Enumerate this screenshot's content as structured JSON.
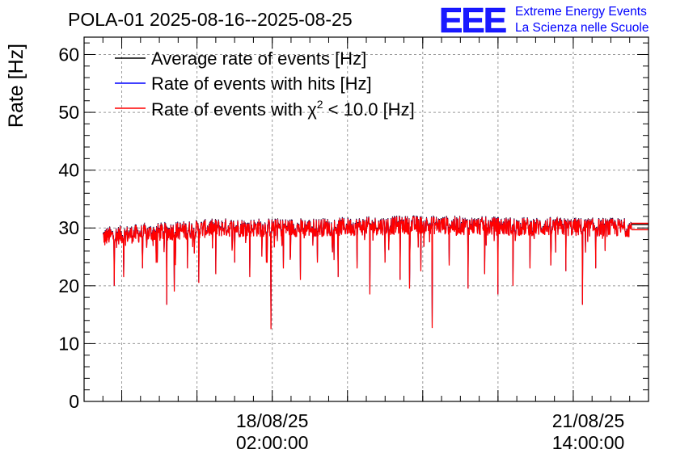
{
  "chart_data": {
    "type": "line",
    "title": "POLA-01 2025-08-16--2025-08-25",
    "ylabel": "Rate [Hz]",
    "xlabel": "",
    "ylim": [
      0,
      63
    ],
    "yticks": [
      0,
      10,
      20,
      30,
      40,
      50,
      60
    ],
    "grid": true,
    "legend_position": "top-left",
    "x_tick_labels": [
      {
        "date": "18/08/25",
        "time": "02:00:00",
        "x": "2025-08-18T02:00:00"
      },
      {
        "date": "21/08/25",
        "time": "14:00:00",
        "x": "2025-08-21T14:00:00"
      }
    ],
    "xlim": [
      "2025-08-16T00:00:00",
      "2025-08-22T06:00:00"
    ],
    "series": [
      {
        "name": "Average rate of events [Hz]",
        "color": "#000000",
        "legend_text": "Average rate of events [Hz]"
      },
      {
        "name": "Rate of events with hits [Hz]",
        "color": "#0000ff",
        "legend_text": "Rate of events with hits [Hz]"
      },
      {
        "name": "Rate of events with χ2 < 10.0 [Hz]",
        "color": "#ff0000",
        "legend_pre": "Rate of events with χ",
        "legend_sup": "2",
        "legend_post": " < 10.0 [Hz]"
      }
    ],
    "data_start": "2025-08-16T05:00:00",
    "data_end": "2025-08-22T01:30:00",
    "baseline": [
      {
        "x": "2025-08-16T05:00:00",
        "y": 28.5
      },
      {
        "x": "2025-08-17T12:00:00",
        "y": 30.0
      },
      {
        "x": "2025-08-18T12:00:00",
        "y": 30.0
      },
      {
        "x": "2025-08-19T18:00:00",
        "y": 30.5
      },
      {
        "x": "2025-08-20T18:00:00",
        "y": 30.2
      },
      {
        "x": "2025-08-22T01:30:00",
        "y": 30.0
      }
    ],
    "band_halfwidth": 1.6,
    "dips": [
      {
        "x": "2025-08-16T05:30:00",
        "y": 27.0
      },
      {
        "x": "2025-08-16T08:00:00",
        "y": 20.0
      },
      {
        "x": "2025-08-16T10:30:00",
        "y": 21.5
      },
      {
        "x": "2025-08-16T15:30:00",
        "y": 23.0
      },
      {
        "x": "2025-08-16T19:30:00",
        "y": 24.0
      },
      {
        "x": "2025-08-16T22:00:00",
        "y": 16.7
      },
      {
        "x": "2025-08-17T00:00:00",
        "y": 19.0
      },
      {
        "x": "2025-08-17T03:30:00",
        "y": 23.0
      },
      {
        "x": "2025-08-17T06:30:00",
        "y": 20.5
      },
      {
        "x": "2025-08-17T11:00:00",
        "y": 22.0
      },
      {
        "x": "2025-08-17T16:00:00",
        "y": 24.0
      },
      {
        "x": "2025-08-17T20:00:00",
        "y": 21.5
      },
      {
        "x": "2025-08-18T00:30:00",
        "y": 24.0
      },
      {
        "x": "2025-08-18T01:40:00",
        "y": 12.5
      },
      {
        "x": "2025-08-18T05:00:00",
        "y": 23.0
      },
      {
        "x": "2025-08-18T09:30:00",
        "y": 21.0
      },
      {
        "x": "2025-08-18T14:00:00",
        "y": 24.0
      },
      {
        "x": "2025-08-18T19:30:00",
        "y": 21.5
      },
      {
        "x": "2025-08-19T00:30:00",
        "y": 23.0
      },
      {
        "x": "2025-08-19T04:00:00",
        "y": 18.5
      },
      {
        "x": "2025-08-19T08:00:00",
        "y": 24.0
      },
      {
        "x": "2025-08-19T12:00:00",
        "y": 21.0
      },
      {
        "x": "2025-08-19T14:30:00",
        "y": 19.5
      },
      {
        "x": "2025-08-19T17:30:00",
        "y": 22.5
      },
      {
        "x": "2025-08-19T20:30:00",
        "y": 12.7
      },
      {
        "x": "2025-08-20T01:00:00",
        "y": 23.5
      },
      {
        "x": "2025-08-20T06:00:00",
        "y": 19.5
      },
      {
        "x": "2025-08-20T10:30:00",
        "y": 22.0
      },
      {
        "x": "2025-08-20T14:00:00",
        "y": 18.5
      },
      {
        "x": "2025-08-20T18:00:00",
        "y": 20.0
      },
      {
        "x": "2025-08-20T22:30:00",
        "y": 23.0
      },
      {
        "x": "2025-08-21T04:00:00",
        "y": 23.5
      },
      {
        "x": "2025-08-21T08:00:00",
        "y": 22.5
      },
      {
        "x": "2025-08-21T12:30:00",
        "y": 16.7
      },
      {
        "x": "2025-08-21T16:00:00",
        "y": 23.0
      },
      {
        "x": "2025-08-21T18:30:00",
        "y": 26.0
      }
    ],
    "tail_level_black": 30.6,
    "tail_level_red": 30.2
  },
  "logo": {
    "text": "EEE",
    "line1": "Extreme Energy Events",
    "line2": "La Scienza nelle Scuole",
    "color": "#0000ff"
  }
}
